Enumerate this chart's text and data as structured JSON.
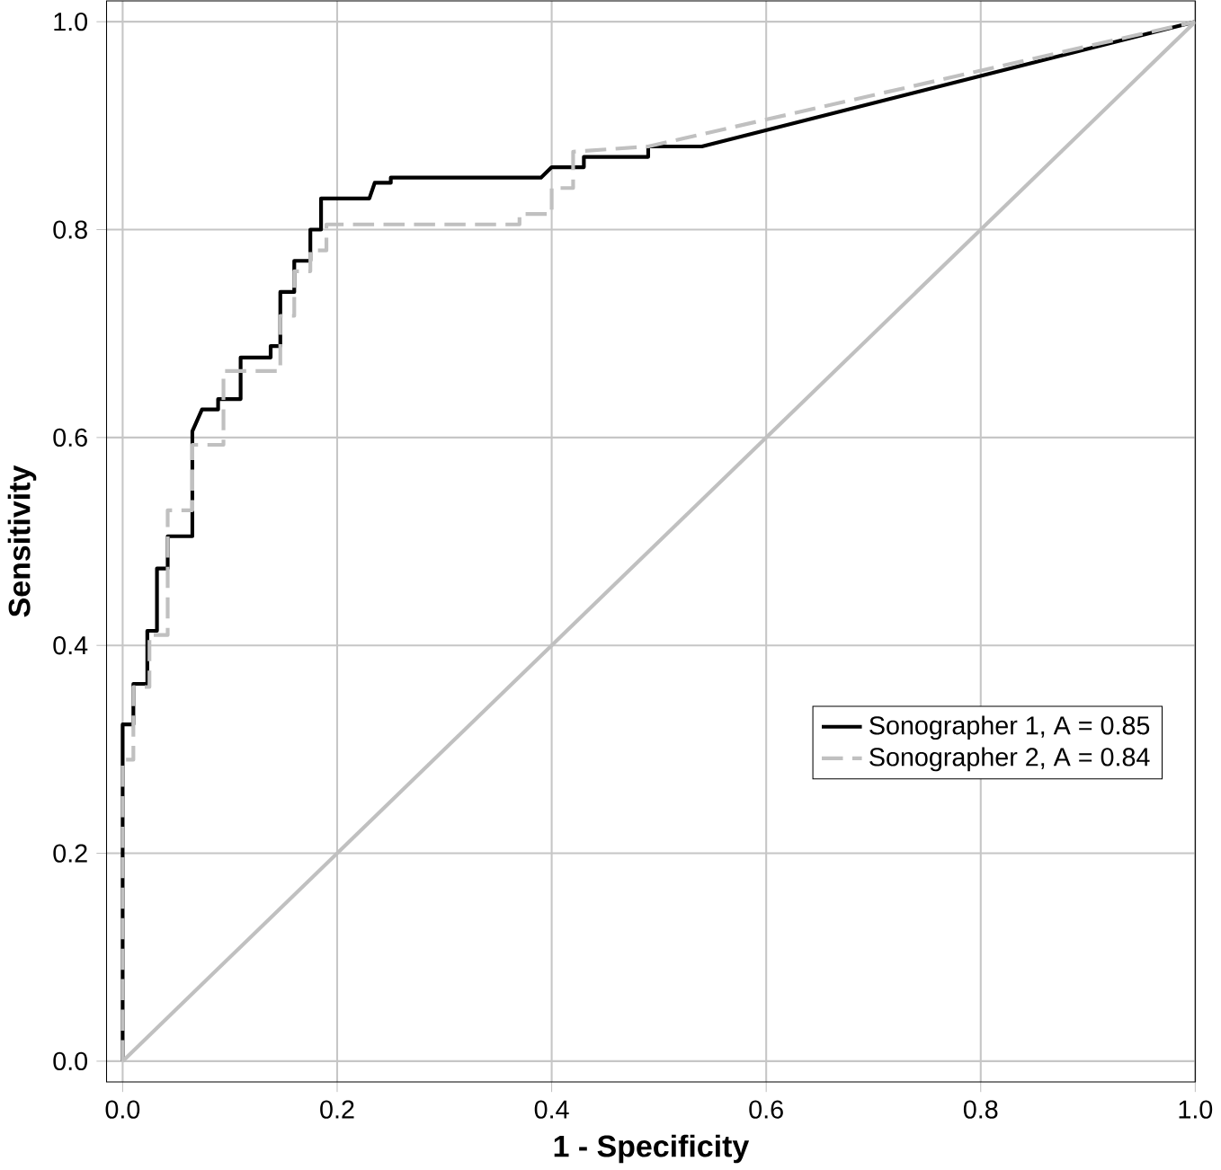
{
  "chart_data": {
    "type": "line",
    "xlabel": "1 - Specificity",
    "ylabel": "Sensitivity",
    "xlim": [
      -0.015,
      1.0
    ],
    "ylim": [
      -0.02,
      1.02
    ],
    "xticks": [
      {
        "value": 0,
        "label": "0.0"
      },
      {
        "value": 0.2,
        "label": "0.2"
      },
      {
        "value": 0.4,
        "label": "0.4"
      },
      {
        "value": 0.6,
        "label": "0.6"
      },
      {
        "value": 0.8,
        "label": "0.8"
      },
      {
        "value": 1.0,
        "label": "1.0"
      }
    ],
    "yticks": [
      {
        "value": 0,
        "label": "0.0"
      },
      {
        "value": 0.2,
        "label": "0.2"
      },
      {
        "value": 0.4,
        "label": "0.4"
      },
      {
        "value": 0.6,
        "label": "0.6"
      },
      {
        "value": 0.8,
        "label": "0.8"
      },
      {
        "value": 1.0,
        "label": "1.0"
      }
    ],
    "grid": true,
    "legend": "bottom right",
    "marker": "none",
    "series": [
      {
        "name": "Sonographer 1, A = 0.85",
        "color": "#000000",
        "line_style": "solid",
        "x": [
          0,
          0,
          0.01,
          0.01,
          0.023,
          0.023,
          0.032,
          0.032,
          0.042,
          0.042,
          0.065,
          0.065,
          0.074,
          0.089,
          0.089,
          0.11,
          0.11,
          0.138,
          0.138,
          0.147,
          0.147,
          0.16,
          0.16,
          0.175,
          0.175,
          0.185,
          0.185,
          0.23,
          0.235,
          0.25,
          0.25,
          0.39,
          0.4,
          0.43,
          0.43,
          0.49,
          0.49,
          0.54,
          1.0
        ],
        "values": [
          0,
          0.324,
          0.324,
          0.363,
          0.363,
          0.414,
          0.414,
          0.474,
          0.474,
          0.505,
          0.505,
          0.606,
          0.627,
          0.627,
          0.637,
          0.637,
          0.677,
          0.677,
          0.688,
          0.688,
          0.74,
          0.74,
          0.77,
          0.77,
          0.8,
          0.8,
          0.83,
          0.83,
          0.845,
          0.845,
          0.85,
          0.85,
          0.86,
          0.86,
          0.87,
          0.87,
          0.88,
          0.88,
          1.0
        ]
      },
      {
        "name": "Sonographer 2, A = 0.84",
        "color": "#c0c0c0",
        "line_style": "dashed",
        "x": [
          0,
          0,
          0.01,
          0.01,
          0.025,
          0.025,
          0.042,
          0.042,
          0.065,
          0.065,
          0.085,
          0.094,
          0.094,
          0.147,
          0.147,
          0.16,
          0.16,
          0.175,
          0.175,
          0.19,
          0.19,
          0.37,
          0.37,
          0.4,
          0.4,
          0.42,
          0.42,
          0.49,
          1.0
        ],
        "values": [
          0,
          0.29,
          0.29,
          0.36,
          0.36,
          0.41,
          0.41,
          0.53,
          0.53,
          0.593,
          0.593,
          0.593,
          0.664,
          0.664,
          0.717,
          0.717,
          0.76,
          0.76,
          0.78,
          0.78,
          0.805,
          0.805,
          0.815,
          0.815,
          0.84,
          0.84,
          0.875,
          0.88,
          1.0
        ]
      },
      {
        "color": "#c0c0c0",
        "line_style": "solid",
        "x": [
          0,
          1.0
        ],
        "values": [
          0,
          1.0
        ]
      }
    ]
  }
}
